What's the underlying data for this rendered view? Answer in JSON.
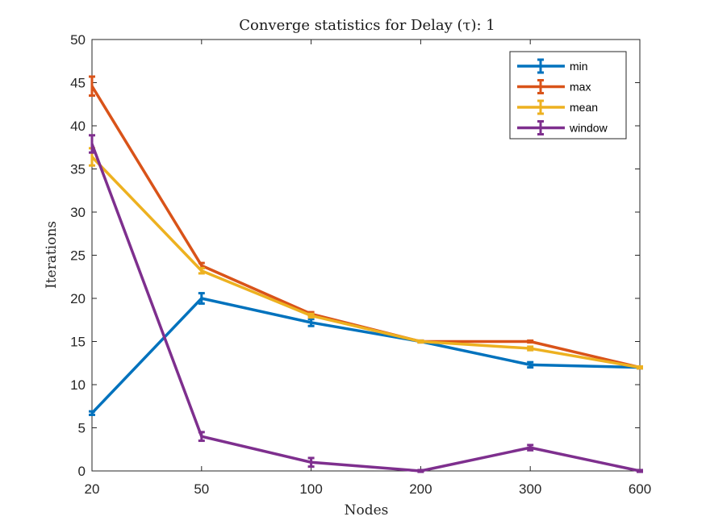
{
  "chart_data": {
    "type": "line",
    "title": "Converge statistics for Delay (τ): 1",
    "xlabel": "Nodes",
    "ylabel": "Iterations",
    "categories": [
      "20",
      "50",
      "100",
      "200",
      "300",
      "600"
    ],
    "ylim": [
      0,
      50
    ],
    "yticks": [
      0,
      5,
      10,
      15,
      20,
      25,
      30,
      35,
      40,
      45,
      50
    ],
    "grid": false,
    "legend_position": "top-right",
    "series": [
      {
        "name": "min",
        "color": "#0072BD",
        "values": [
          6.7,
          20.0,
          17.2,
          15.0,
          12.3,
          12.0
        ],
        "errors": [
          0.2,
          0.6,
          0.4,
          0.1,
          0.3,
          0.1
        ]
      },
      {
        "name": "max",
        "color": "#D95319",
        "values": [
          44.6,
          23.8,
          18.2,
          15.0,
          15.0,
          12.0
        ],
        "errors": [
          1.1,
          0.3,
          0.2,
          0.1,
          0.1,
          0.1
        ]
      },
      {
        "name": "mean",
        "color": "#EDB120",
        "values": [
          36.4,
          23.2,
          18.0,
          15.0,
          14.2,
          12.0
        ],
        "errors": [
          1.0,
          0.3,
          0.2,
          0.1,
          0.2,
          0.1
        ]
      },
      {
        "name": "window",
        "color": "#7E2F8E",
        "values": [
          37.9,
          4.0,
          1.0,
          0.0,
          2.7,
          0.0
        ],
        "errors": [
          1.0,
          0.5,
          0.5,
          0.1,
          0.3,
          0.1
        ]
      }
    ]
  }
}
